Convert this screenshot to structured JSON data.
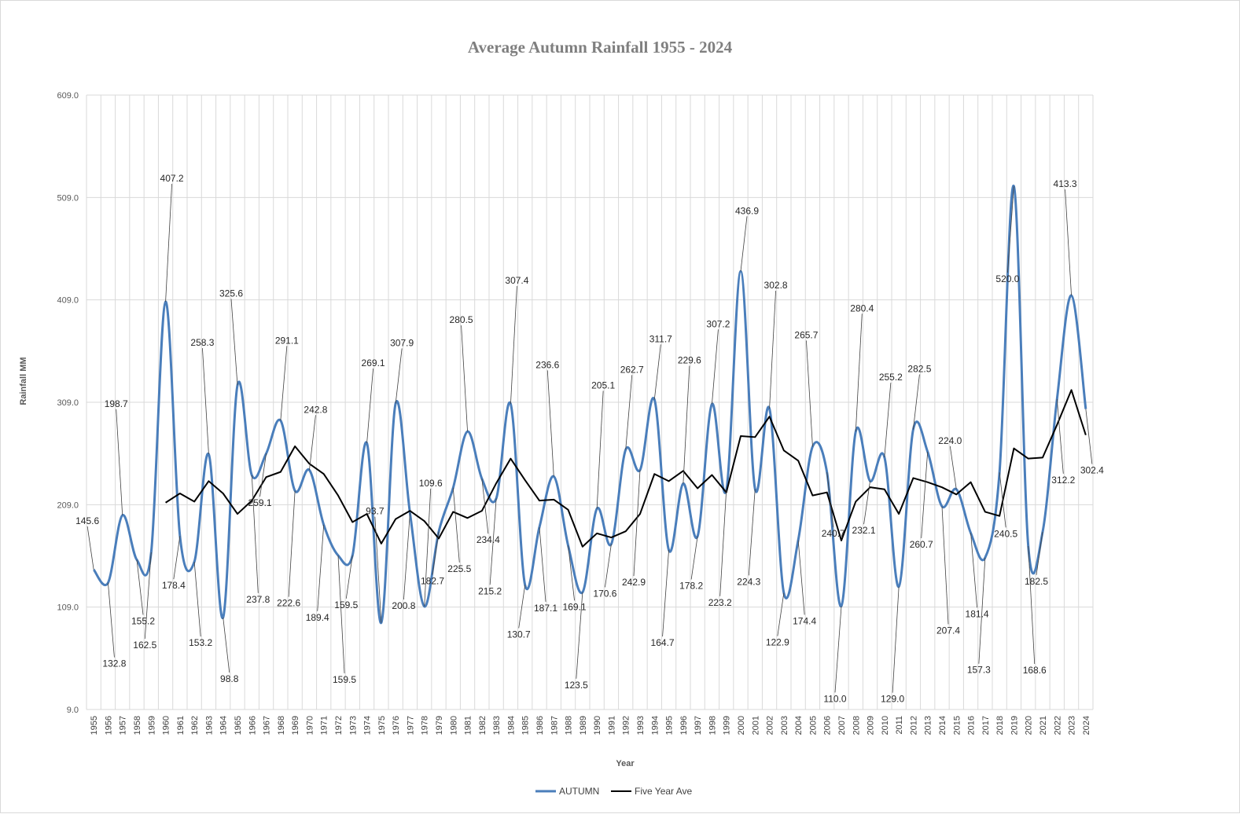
{
  "chart_data": {
    "type": "line",
    "title": "Average Autumn Rainfall 1955 - 2024",
    "xlabel": "Year",
    "ylabel": "Rainfall MM",
    "ylim": [
      9.0,
      609.0
    ],
    "yticks": [
      "9.0",
      "109.0",
      "209.0",
      "309.0",
      "409.0",
      "509.0",
      "609.0"
    ],
    "grid": true,
    "legend_position": "bottom",
    "x": [
      1955,
      1956,
      1957,
      1958,
      1959,
      1960,
      1961,
      1962,
      1963,
      1964,
      1965,
      1966,
      1967,
      1968,
      1969,
      1970,
      1971,
      1972,
      1973,
      1974,
      1975,
      1976,
      1977,
      1978,
      1979,
      1980,
      1981,
      1982,
      1983,
      1984,
      1985,
      1986,
      1987,
      1988,
      1989,
      1990,
      1991,
      1992,
      1993,
      1994,
      1995,
      1996,
      1997,
      1998,
      1999,
      2000,
      2001,
      2002,
      2003,
      2004,
      2005,
      2006,
      2007,
      2008,
      2009,
      2010,
      2011,
      2012,
      2013,
      2014,
      2015,
      2016,
      2017,
      2018,
      2019,
      2020,
      2021,
      2022,
      2023,
      2024
    ],
    "series": [
      {
        "name": "AUTUMN",
        "color": "#4a7ebb",
        "smooth": true,
        "values": [
          145.6,
          132.8,
          198.7,
          155.2,
          162.5,
          407.2,
          178.4,
          153.2,
          258.3,
          98.8,
          325.6,
          237.8,
          259.1,
          291.1,
          222.6,
          242.8,
          189.4,
          159.5,
          159.5,
          269.1,
          93.7,
          307.9,
          200.8,
          109.6,
          182.7,
          225.5,
          280.5,
          234.4,
          215.2,
          307.4,
          130.7,
          187.1,
          236.6,
          169.1,
          123.5,
          205.1,
          170.6,
          262.7,
          242.9,
          311.7,
          164.7,
          229.6,
          178.2,
          307.2,
          223.2,
          436.9,
          224.3,
          302.8,
          122.9,
          174.4,
          265.7,
          240.7,
          110.0,
          280.4,
          232.1,
          255.2,
          129.0,
          282.5,
          260.7,
          207.4,
          224.0,
          181.4,
          157.3,
          240.5,
          520.0,
          168.6,
          182.5,
          312.2,
          413.3,
          302.4
        ],
        "labels": [
          "145.6",
          "132.8",
          "198.7",
          "155.2",
          "162.5",
          "407.2",
          "178.4",
          "153.2",
          "258.3",
          "98.8",
          "325.6",
          "237.8",
          "259.1",
          "291.1",
          "222.6",
          "242.8",
          "189.4",
          "159.5",
          "159.5",
          "269.1",
          "93.7",
          "307.9",
          "200.8",
          "109.6",
          "182.7",
          "225.5",
          "280.5",
          "234.4",
          "215.2",
          "307.4",
          "130.7",
          "187.1",
          "236.6",
          "169.1",
          "123.5",
          "205.1",
          "170.6",
          "262.7",
          "242.9",
          "311.7",
          "164.7",
          "229.6",
          "178.2",
          "307.2",
          "223.2",
          "436.9",
          "224.3",
          "302.8",
          "122.9",
          "174.4",
          "265.7",
          "240.7",
          "110.0",
          "280.4",
          "232.1",
          "255.2",
          "129.0",
          "282.5",
          "260.7",
          "207.4",
          "224.0",
          "181.4",
          "157.3",
          "240.5",
          "520.0",
          "168.6",
          "182.5",
          "312.2",
          "413.3",
          "302.4"
        ]
      },
      {
        "name": "Five Year Ave",
        "color": "#000000",
        "smooth": false,
        "values": [
          null,
          null,
          null,
          null,
          null,
          211,
          220,
          212,
          232,
          220,
          200,
          213,
          236,
          241,
          266,
          249,
          239,
          218,
          192,
          200,
          171,
          195,
          203,
          193,
          176,
          202,
          196,
          203,
          230,
          254,
          233,
          213,
          214,
          204,
          168,
          181,
          177,
          183,
          200,
          239,
          232,
          242,
          225,
          238,
          221,
          276,
          275,
          295,
          262,
          252,
          218,
          221,
          174,
          212,
          226,
          224,
          200,
          235,
          231,
          226,
          219,
          231,
          202,
          198,
          264,
          254,
          255,
          287,
          321,
          277
        ]
      }
    ]
  }
}
